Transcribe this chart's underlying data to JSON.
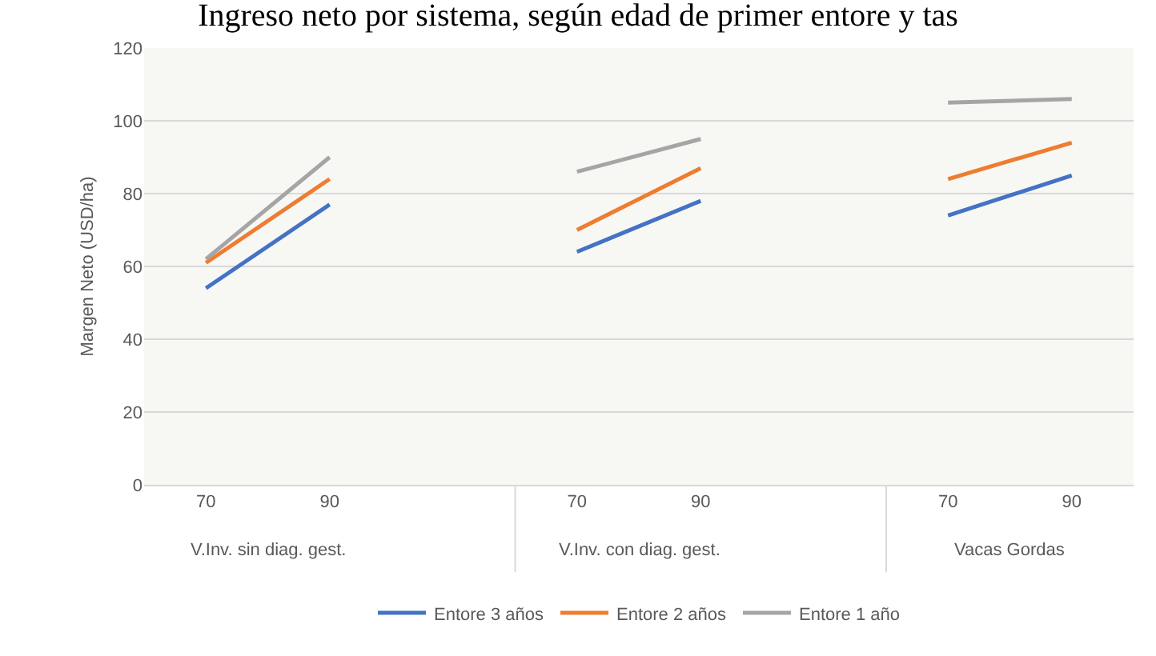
{
  "chart_data": {
    "type": "line",
    "title": "Ingreso neto por sistema, según edad de primer entore y tas",
    "ylabel": "Margen Neto (USD/ha)",
    "categories": [
      "70",
      "90",
      null,
      "70",
      "90",
      null,
      "70",
      "90"
    ],
    "annotations": [
      "V.Inv. sin diag. gest.",
      "V.Inv. con diag. gest.",
      "Vacas Gordas"
    ],
    "series": [
      {
        "name": "Entore 3 años",
        "color": "#4472c4",
        "values": [
          54,
          77,
          null,
          64,
          78,
          null,
          74,
          85
        ]
      },
      {
        "name": "Entore 2 años",
        "color": "#ed7d31",
        "values": [
          61,
          84,
          null,
          70,
          87,
          null,
          84,
          94
        ]
      },
      {
        "name": "Entore 1 año",
        "color": "#a5a5a5",
        "values": [
          62,
          90,
          null,
          86,
          95,
          null,
          105,
          106
        ]
      }
    ],
    "ylim": [
      0,
      120
    ],
    "yticks": [
      0,
      20,
      40,
      60,
      80,
      100,
      120
    ],
    "grid": "y",
    "legend": "bottom",
    "marker": "none",
    "line_style": "solid"
  }
}
